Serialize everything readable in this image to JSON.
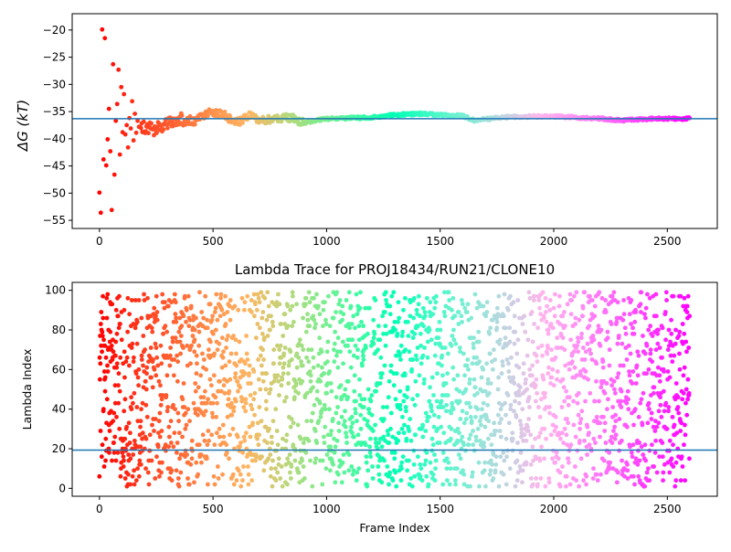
{
  "chart_data": [
    {
      "type": "scatter",
      "title": "",
      "xlabel": "",
      "ylabel": "ΔG (kT)",
      "xlim": [
        -120,
        2720
      ],
      "ylim": [
        -56.5,
        -17.0
      ],
      "xticks": [
        0,
        500,
        1000,
        1500,
        2000,
        2500
      ],
      "yticks": [
        -20,
        -25,
        -30,
        -35,
        -40,
        -45,
        -50,
        -55
      ],
      "hline": -36.3,
      "colormap": "rainbow",
      "series": {
        "x_start": 0,
        "x_step": 6,
        "x_end": 2598,
        "description_points": [
          [
            0,
            -49.9
          ],
          [
            6,
            -53.6
          ],
          [
            12,
            -19.9
          ],
          [
            18,
            -43.8
          ],
          [
            24,
            -21.5
          ],
          [
            30,
            -44.9
          ],
          [
            36,
            -40.1
          ],
          [
            42,
            -34.5
          ],
          [
            48,
            -42.3
          ],
          [
            54,
            -53.1
          ],
          [
            60,
            -26.3
          ],
          [
            66,
            -46.6
          ],
          [
            72,
            -36.7
          ],
          [
            78,
            -33.6
          ],
          [
            84,
            -27.3
          ],
          [
            90,
            -42.9
          ],
          [
            96,
            -30.5
          ],
          [
            102,
            -38.8
          ],
          [
            108,
            -31.8
          ],
          [
            114,
            -39.2
          ],
          [
            120,
            -37.5
          ],
          [
            126,
            -41.6
          ],
          [
            132,
            -36.2
          ],
          [
            138,
            -38.1
          ],
          [
            144,
            -33.1
          ],
          [
            150,
            -40.3
          ],
          [
            156,
            -35.4
          ],
          [
            162,
            -38.9
          ],
          [
            168,
            -36.7
          ],
          [
            174,
            -37.8
          ]
        ],
        "trend": [
          [
            180,
            -37.6
          ],
          [
            240,
            -38.3
          ],
          [
            300,
            -37.3
          ],
          [
            360,
            -36.4
          ],
          [
            420,
            -36.9
          ],
          [
            480,
            -35.1
          ],
          [
            540,
            -35.3
          ],
          [
            600,
            -37.1
          ],
          [
            660,
            -35.8
          ],
          [
            720,
            -36.6
          ],
          [
            780,
            -36.4
          ],
          [
            840,
            -36.1
          ],
          [
            900,
            -37.1
          ],
          [
            960,
            -36.5
          ],
          [
            1020,
            -36.3
          ],
          [
            1100,
            -36.2
          ],
          [
            1200,
            -36.1
          ],
          [
            1300,
            -35.6
          ],
          [
            1400,
            -35.4
          ],
          [
            1500,
            -35.6
          ],
          [
            1600,
            -35.8
          ],
          [
            1650,
            -36.6
          ],
          [
            1700,
            -36.4
          ],
          [
            1800,
            -36.0
          ],
          [
            1900,
            -35.9
          ],
          [
            2000,
            -35.9
          ],
          [
            2100,
            -36.1
          ],
          [
            2200,
            -36.3
          ],
          [
            2300,
            -36.6
          ],
          [
            2400,
            -36.4
          ],
          [
            2500,
            -36.3
          ],
          [
            2598,
            -36.3
          ]
        ]
      }
    },
    {
      "type": "scatter",
      "title": "Lambda Trace for PROJ18434/RUN21/CLONE10",
      "xlabel": "Frame Index",
      "ylabel": "Lambda Index",
      "xlim": [
        -120,
        2720
      ],
      "ylim": [
        -4,
        104
      ],
      "xticks": [
        0,
        500,
        1000,
        1500,
        2000,
        2500
      ],
      "yticks": [
        0,
        20,
        40,
        60,
        80,
        100
      ],
      "hline": 19.3,
      "colormap": "rainbow",
      "series": {
        "x_start": 0,
        "x_step": 1,
        "x_end": 2598,
        "y_range": [
          1,
          99
        ],
        "sampling": "random"
      }
    }
  ]
}
